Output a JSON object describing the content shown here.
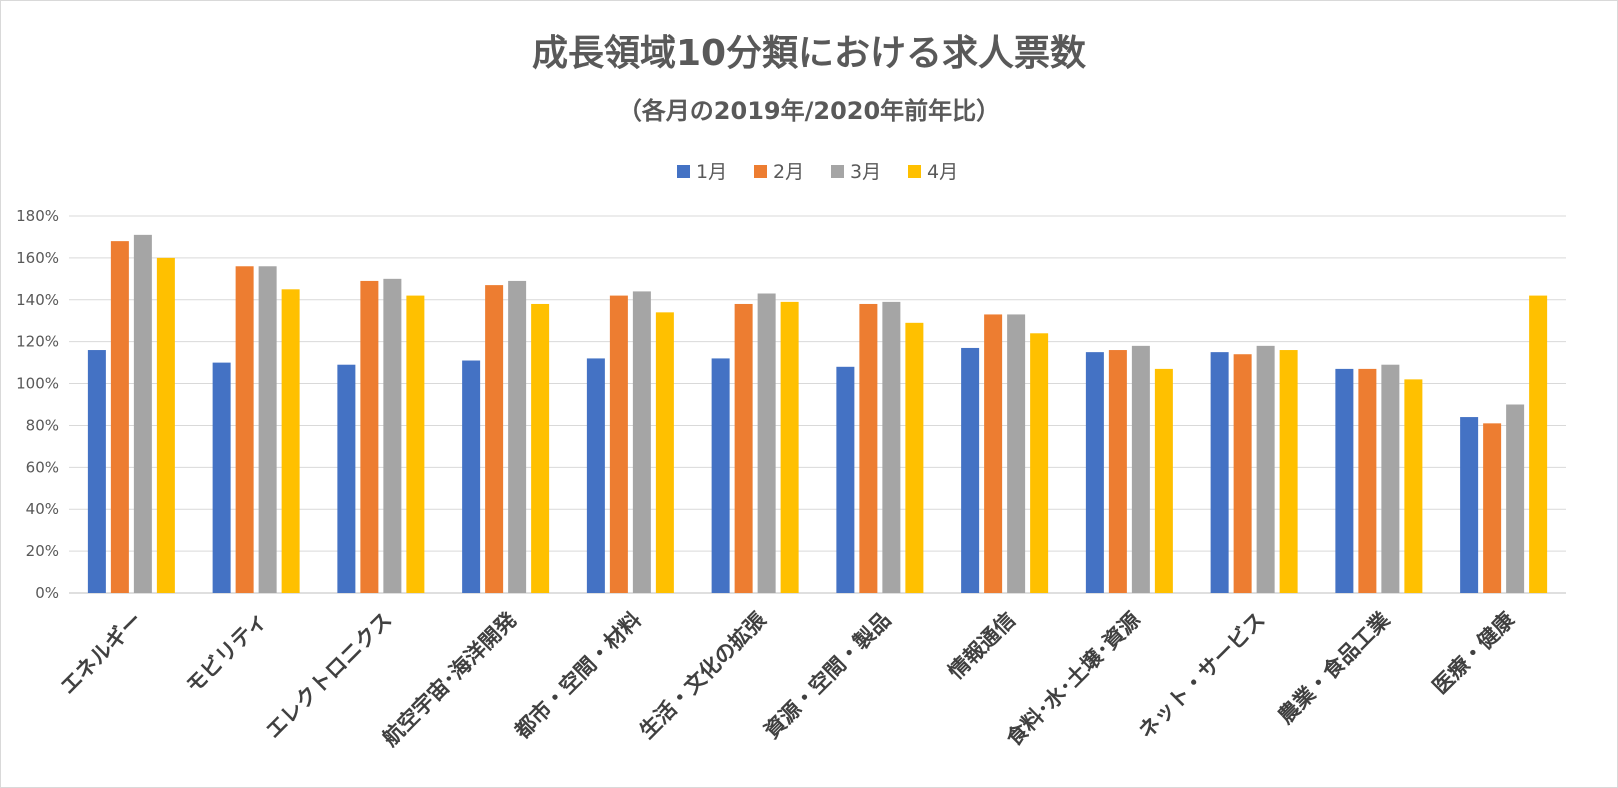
{
  "chart_data": {
    "type": "bar",
    "title": "成長領域10分類における求人票数",
    "subtitle": "（各月の2019年/2020年前年比）",
    "categories": [
      "エネルギー",
      "モビリティ",
      "エレクトロニクス",
      "航空宇宙･海洋開発",
      "都市・空間・材料",
      "生活・文化の拡張",
      "資源・空間・製品",
      "情報通信",
      "食料･水･土壌･資源",
      "ネット・サービス",
      "農業・食品工業",
      "医療・健康"
    ],
    "series": [
      {
        "name": "1月",
        "color": "#4472C4",
        "values": [
          116,
          110,
          109,
          111,
          112,
          112,
          108,
          117,
          115,
          115,
          107,
          84
        ]
      },
      {
        "name": "2月",
        "color": "#ED7D31",
        "values": [
          168,
          156,
          149,
          147,
          142,
          138,
          138,
          133,
          116,
          114,
          107,
          81
        ]
      },
      {
        "name": "3月",
        "color": "#A5A5A5",
        "values": [
          171,
          156,
          150,
          149,
          144,
          143,
          139,
          133,
          118,
          118,
          109,
          90
        ]
      },
      {
        "name": "4月",
        "color": "#FFC000",
        "values": [
          160,
          145,
          142,
          138,
          134,
          139,
          129,
          124,
          107,
          116,
          102,
          142
        ]
      }
    ],
    "y_ticks": [
      "0%",
      "20%",
      "40%",
      "60%",
      "80%",
      "100%",
      "120%",
      "140%",
      "160%",
      "180%"
    ],
    "ylim": [
      0,
      180
    ],
    "legend_position": "top-center",
    "grid": true
  }
}
